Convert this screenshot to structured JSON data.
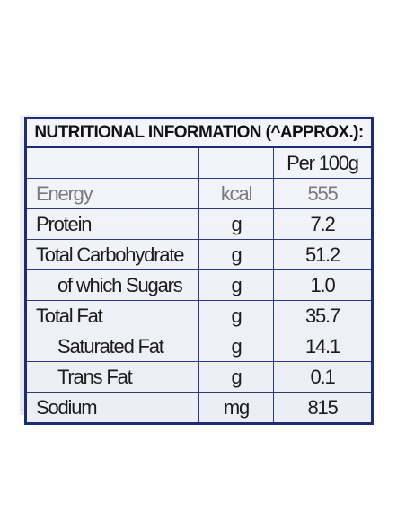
{
  "table": {
    "title": "NUTRITIONAL INFORMATION (^APPROX.):",
    "header": {
      "name": "",
      "unit": "",
      "value": "Per 100g"
    },
    "rows": [
      {
        "name": "Energy",
        "unit": "kcal",
        "value": "555"
      },
      {
        "name": "Protein",
        "unit": "g",
        "value": "7.2"
      },
      {
        "name": "Total Carbohydrate",
        "unit": "g",
        "value": "51.2"
      },
      {
        "name": "of which Sugars",
        "unit": "g",
        "value": "1.0"
      },
      {
        "name": "Total Fat",
        "unit": "g",
        "value": "35.7"
      },
      {
        "name": "Saturated Fat",
        "unit": "g",
        "value": "14.1"
      },
      {
        "name": "Trans Fat",
        "unit": "g",
        "value": "0.1"
      },
      {
        "name": "Sodium",
        "unit": "mg",
        "value": "815"
      }
    ]
  },
  "colors": {
    "border": "#1c2d73",
    "background": "#eef0f6",
    "text": "#1c1c1c"
  }
}
